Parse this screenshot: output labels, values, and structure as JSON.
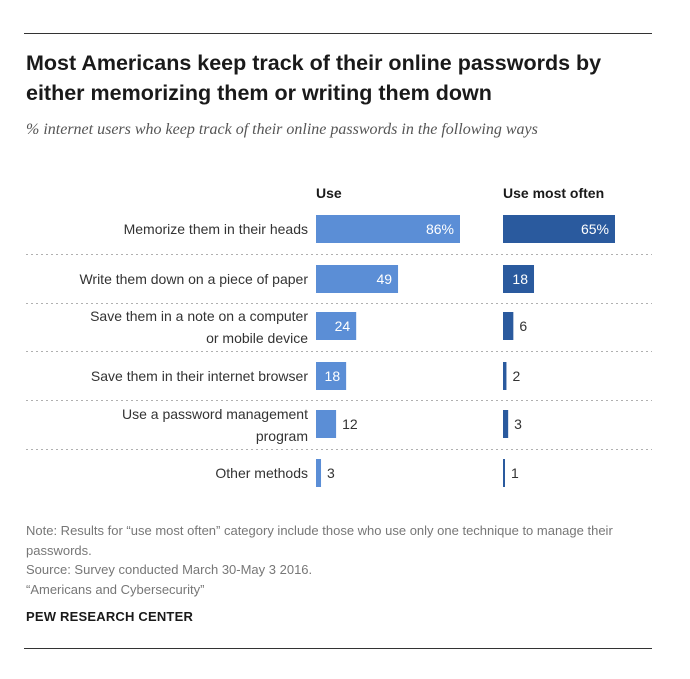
{
  "title": "Most Americans keep track of their online passwords by either memorizing them or writing them down",
  "subtitle": "% internet users who keep track of their online passwords in the following ways",
  "chart_data": {
    "type": "bar",
    "orientation": "horizontal",
    "categories": [
      "Memorize them in their heads",
      "Write them down on a piece of paper",
      "Save them in a note on a computer or mobile device",
      "Save them in their internet browser",
      "Use a password management program",
      "Other methods"
    ],
    "series": [
      {
        "name": "Use",
        "values": [
          86,
          49,
          24,
          18,
          12,
          3
        ],
        "labels": [
          "86%",
          "49",
          "24",
          "18",
          "12",
          "3"
        ],
        "color": "#5b8ed6"
      },
      {
        "name": "Use most often",
        "values": [
          65,
          18,
          6,
          2,
          3,
          1
        ],
        "labels": [
          "65%",
          "18",
          "6",
          "2",
          "3",
          "1"
        ],
        "color": "#2a5a9e"
      }
    ],
    "grid": false
  },
  "notes": {
    "note": "Note: Results for “use most often” category include those who use only one technique to manage their passwords.",
    "source": "Source: Survey conducted March 30-May 3 2016.",
    "report": "“Americans and Cybersecurity”"
  },
  "brand": "PEW RESEARCH CENTER"
}
